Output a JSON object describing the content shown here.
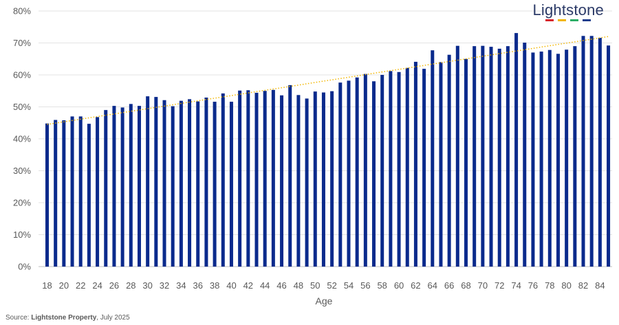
{
  "brand": {
    "name": "Lightstone",
    "bar_colors": [
      "#d8232a",
      "#f2b600",
      "#2bae66",
      "#1e3c8c"
    ]
  },
  "source": {
    "prefix": "Source: ",
    "org": "Lightstone Property",
    "date": ", July 2025"
  },
  "chart_data": {
    "type": "bar",
    "title": "",
    "xlabel": "Age",
    "ylabel": "",
    "ylim": [
      0,
      80
    ],
    "y_ticks": [
      "0%",
      "10%",
      "20%",
      "30%",
      "40%",
      "50%",
      "60%",
      "70%",
      "80%"
    ],
    "x_tick_labels": [
      "18",
      "20",
      "22",
      "24",
      "26",
      "28",
      "30",
      "32",
      "34",
      "36",
      "38",
      "40",
      "42",
      "44",
      "46",
      "48",
      "50",
      "52",
      "54",
      "56",
      "58",
      "60",
      "62",
      "64",
      "66",
      "68",
      "70",
      "72",
      "74",
      "76",
      "78",
      "80",
      "82",
      "84"
    ],
    "grid": "horizontal",
    "bar_color": "#0a2a8c",
    "trendline": {
      "type": "linear",
      "style": "dotted",
      "color": "#f2b600",
      "start": [
        18,
        44.5
      ],
      "end": [
        85,
        72.0
      ]
    },
    "categories": [
      18,
      19,
      20,
      21,
      22,
      23,
      24,
      25,
      26,
      27,
      28,
      29,
      30,
      31,
      32,
      33,
      34,
      35,
      36,
      37,
      38,
      39,
      40,
      41,
      42,
      43,
      44,
      45,
      46,
      47,
      48,
      49,
      50,
      51,
      52,
      53,
      54,
      55,
      56,
      57,
      58,
      59,
      60,
      61,
      62,
      63,
      64,
      65,
      66,
      67,
      68,
      69,
      70,
      71,
      72,
      73,
      74,
      75,
      76,
      77,
      78,
      79,
      80,
      81,
      82,
      83,
      84,
      85
    ],
    "values": [
      44.8,
      45.9,
      45.8,
      47.0,
      47.0,
      44.7,
      46.8,
      49.0,
      50.3,
      49.8,
      50.9,
      50.3,
      53.3,
      53.1,
      52.1,
      50.2,
      51.9,
      52.4,
      51.7,
      52.9,
      51.6,
      54.2,
      51.6,
      55.1,
      55.2,
      54.4,
      55.0,
      55.3,
      53.6,
      56.8,
      53.7,
      52.6,
      54.8,
      54.5,
      54.9,
      57.6,
      58.2,
      59.2,
      60.3,
      58.0,
      60.0,
      61.2,
      60.9,
      62.2,
      64.1,
      61.9,
      67.7,
      64.0,
      66.3,
      69.1,
      65.0,
      69.0,
      69.1,
      68.8,
      68.2,
      69.0,
      73.1,
      70.1,
      67.0,
      67.3,
      67.8,
      66.6,
      67.9,
      69.0,
      72.2,
      72.2,
      71.6,
      69.2
    ]
  }
}
